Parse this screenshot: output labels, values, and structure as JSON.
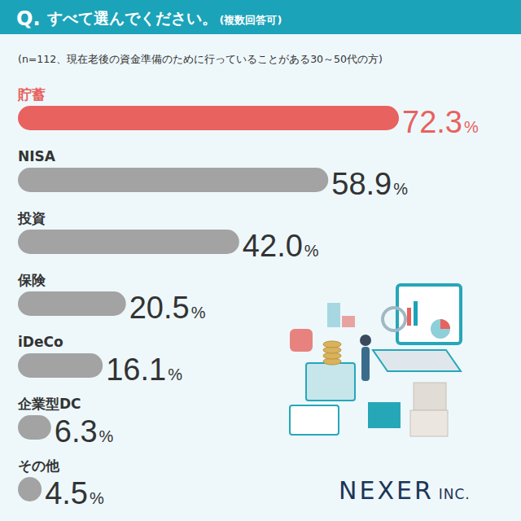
{
  "chart_data": {
    "type": "bar",
    "orientation": "horizontal",
    "title": "すべて選んでください。",
    "subtitle": "(n=112、現在老後の資金準備のために行っていることがある30～50代の方)",
    "annotations": [
      "Q.",
      "(複数回答可)",
      "NEXER",
      "INC."
    ],
    "categories": [
      "貯蓄",
      "NISA",
      "投資",
      "保険",
      "iDeCo",
      "企業型DC",
      "その他"
    ],
    "values": [
      72.3,
      58.9,
      42.0,
      20.5,
      16.1,
      6.3,
      4.5
    ],
    "value_labels": [
      "72.3%",
      "58.9%",
      "42.0%",
      "20.5%",
      "16.1%",
      "6.3%",
      "4.5%"
    ],
    "colors": [
      "#e8625f",
      "#a3a3a3",
      "#a3a3a3",
      "#a3a3a3",
      "#a3a3a3",
      "#a3a3a3",
      "#a3a3a3"
    ],
    "xlim": [
      0,
      72.3
    ],
    "data_labels": true,
    "tick_labels": false,
    "grid": false
  }
}
